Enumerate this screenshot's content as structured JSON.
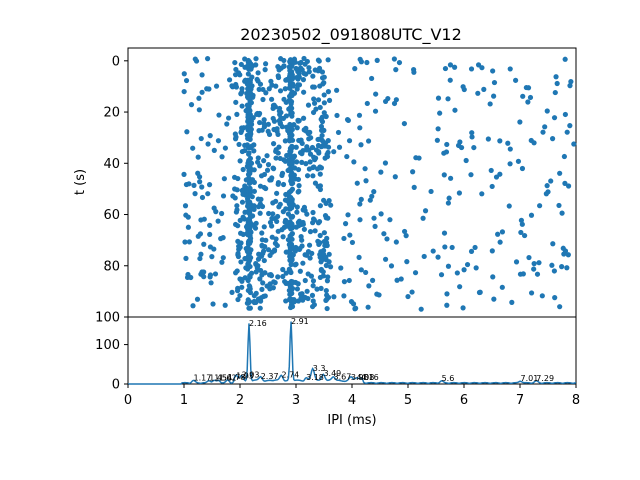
{
  "chart_data": [
    {
      "type": "scatter",
      "title": "20230502_091808UTC_V12",
      "xlabel": "",
      "ylabel": "t (s)",
      "xlim": [
        0,
        8
      ],
      "ylim": [
        100,
        -5
      ],
      "y_inverted": true,
      "y_ticks": [
        "0",
        "20",
        "40",
        "60",
        "80",
        "100"
      ],
      "color": "#1f77b4",
      "points_description_only": "dense raster of IPI events between 1 and 8 ms over 0–97 s, with strong vertical clusters near 2.16 ms and 2.91 ms",
      "dense_columns": [
        2.16,
        2.91
      ],
      "t_range": [
        -1,
        97
      ],
      "ipi_range": [
        1.0,
        8.0
      ]
    },
    {
      "type": "line",
      "xlabel": "IPI (ms)",
      "ylabel": "",
      "xlim": [
        0,
        8
      ],
      "ylim": [
        0,
        170
      ],
      "x_ticks": [
        "0",
        "1",
        "2",
        "3",
        "4",
        "5",
        "6",
        "7",
        "8"
      ],
      "y_ticks": [
        "0",
        "100"
      ],
      "color": "#1f77b4",
      "peaks": [
        {
          "x": 2.16,
          "y": 145,
          "label": "2.16"
        },
        {
          "x": 2.91,
          "y": 150,
          "label": "2.91"
        },
        {
          "x": 3.3,
          "y": 30,
          "label": "3.3"
        },
        {
          "x": 3.49,
          "y": 18,
          "label": "3.49"
        },
        {
          "x": 2.74,
          "y": 14,
          "label": "2.74"
        },
        {
          "x": 2.03,
          "y": 14,
          "label": "2.03"
        },
        {
          "x": 1.93,
          "y": 12,
          "label": "1.93"
        },
        {
          "x": 2.37,
          "y": 10,
          "label": "2.37"
        },
        {
          "x": 3.67,
          "y": 9,
          "label": "3.67"
        },
        {
          "x": 3.98,
          "y": 8,
          "label": "3.98"
        },
        {
          "x": 4.08,
          "y": 7,
          "label": "4.08"
        },
        {
          "x": 4.16,
          "y": 7,
          "label": "4.16"
        },
        {
          "x": 3.18,
          "y": 8,
          "label": "3.18"
        },
        {
          "x": 1.17,
          "y": 6,
          "label": "1.17"
        },
        {
          "x": 1.45,
          "y": 6,
          "label": "1.45"
        },
        {
          "x": 1.54,
          "y": 6,
          "label": "1.54"
        },
        {
          "x": 1.62,
          "y": 6,
          "label": "1.62"
        },
        {
          "x": 1.78,
          "y": 7,
          "label": "1.78"
        },
        {
          "x": 5.6,
          "y": 5,
          "label": "5.6"
        },
        {
          "x": 7.01,
          "y": 5,
          "label": "7.01"
        },
        {
          "x": 7.29,
          "y": 5,
          "label": "7.29"
        }
      ]
    }
  ]
}
